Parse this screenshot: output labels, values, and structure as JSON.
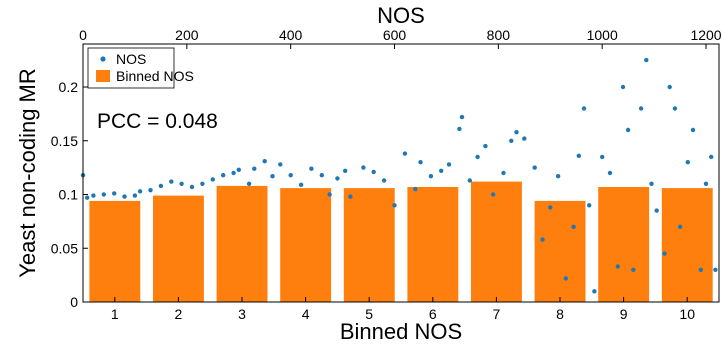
{
  "chart_data": {
    "type": "bar",
    "xlabel_bottom": "Binned NOS",
    "xlabel_top": "NOS",
    "ylabel": "Yeast non-coding MR",
    "ylim": [
      0,
      0.24
    ],
    "yticks": [
      "0",
      "0.05",
      "0.1",
      "0.15",
      "0.2"
    ],
    "ytick_values": [
      0,
      0.05,
      0.1,
      0.15,
      0.2
    ],
    "top_xlim": [
      0,
      1225
    ],
    "top_xticks": [
      "0",
      "200",
      "400",
      "600",
      "800",
      "1000",
      "1200"
    ],
    "top_xtick_values": [
      0,
      200,
      400,
      600,
      800,
      1000,
      1200
    ],
    "categories": [
      "1",
      "2",
      "3",
      "4",
      "5",
      "6",
      "7",
      "8",
      "9",
      "10"
    ],
    "series": [
      {
        "name": "Binned NOS",
        "kind": "bar",
        "color": "#ff7f0e",
        "values": [
          0.094,
          0.099,
          0.108,
          0.106,
          0.106,
          0.107,
          0.112,
          0.094,
          0.107,
          0.106
        ]
      },
      {
        "name": "NOS",
        "kind": "scatter",
        "color": "#1f77b4",
        "points": [
          [
            0,
            0.118
          ],
          [
            8,
            0.097
          ],
          [
            20,
            0.099
          ],
          [
            40,
            0.1
          ],
          [
            60,
            0.101
          ],
          [
            80,
            0.098
          ],
          [
            100,
            0.099
          ],
          [
            110,
            0.103
          ],
          [
            130,
            0.104
          ],
          [
            150,
            0.108
          ],
          [
            170,
            0.112
          ],
          [
            190,
            0.11
          ],
          [
            210,
            0.107
          ],
          [
            230,
            0.11
          ],
          [
            250,
            0.114
          ],
          [
            270,
            0.118
          ],
          [
            290,
            0.12
          ],
          [
            300,
            0.123
          ],
          [
            320,
            0.11
          ],
          [
            330,
            0.124
          ],
          [
            350,
            0.131
          ],
          [
            365,
            0.117
          ],
          [
            380,
            0.128
          ],
          [
            400,
            0.118
          ],
          [
            420,
            0.109
          ],
          [
            440,
            0.124
          ],
          [
            460,
            0.118
          ],
          [
            475,
            0.1
          ],
          [
            490,
            0.115
          ],
          [
            505,
            0.122
          ],
          [
            515,
            0.098
          ],
          [
            540,
            0.125
          ],
          [
            560,
            0.121
          ],
          [
            580,
            0.113
          ],
          [
            600,
            0.09
          ],
          [
            620,
            0.138
          ],
          [
            640,
            0.105
          ],
          [
            650,
            0.13
          ],
          [
            670,
            0.117
          ],
          [
            690,
            0.122
          ],
          [
            705,
            0.128
          ],
          [
            725,
            0.161
          ],
          [
            730,
            0.172
          ],
          [
            745,
            0.113
          ],
          [
            760,
            0.135
          ],
          [
            775,
            0.145
          ],
          [
            790,
            0.1
          ],
          [
            810,
            0.12
          ],
          [
            825,
            0.15
          ],
          [
            835,
            0.158
          ],
          [
            850,
            0.152
          ],
          [
            870,
            0.125
          ],
          [
            885,
            0.058
          ],
          [
            900,
            0.088
          ],
          [
            915,
            0.117
          ],
          [
            930,
            0.022
          ],
          [
            945,
            0.07
          ],
          [
            955,
            0.136
          ],
          [
            965,
            0.18
          ],
          [
            975,
            0.09
          ],
          [
            985,
            0.01
          ],
          [
            1000,
            0.135
          ],
          [
            1015,
            0.12
          ],
          [
            1030,
            0.033
          ],
          [
            1040,
            0.2
          ],
          [
            1050,
            0.16
          ],
          [
            1060,
            0.03
          ],
          [
            1075,
            0.18
          ],
          [
            1085,
            0.225
          ],
          [
            1095,
            0.11
          ],
          [
            1105,
            0.085
          ],
          [
            1120,
            0.045
          ],
          [
            1130,
            0.2
          ],
          [
            1140,
            0.18
          ],
          [
            1150,
            0.07
          ],
          [
            1165,
            0.13
          ],
          [
            1175,
            0.16
          ],
          [
            1190,
            0.03
          ],
          [
            1200,
            0.11
          ],
          [
            1210,
            0.135
          ],
          [
            1218,
            0.03
          ]
        ]
      }
    ],
    "annotation": "PCC = 0.048",
    "legend": {
      "placement": "top-left",
      "entries": [
        "NOS",
        "Binned NOS"
      ]
    },
    "grid": false
  }
}
